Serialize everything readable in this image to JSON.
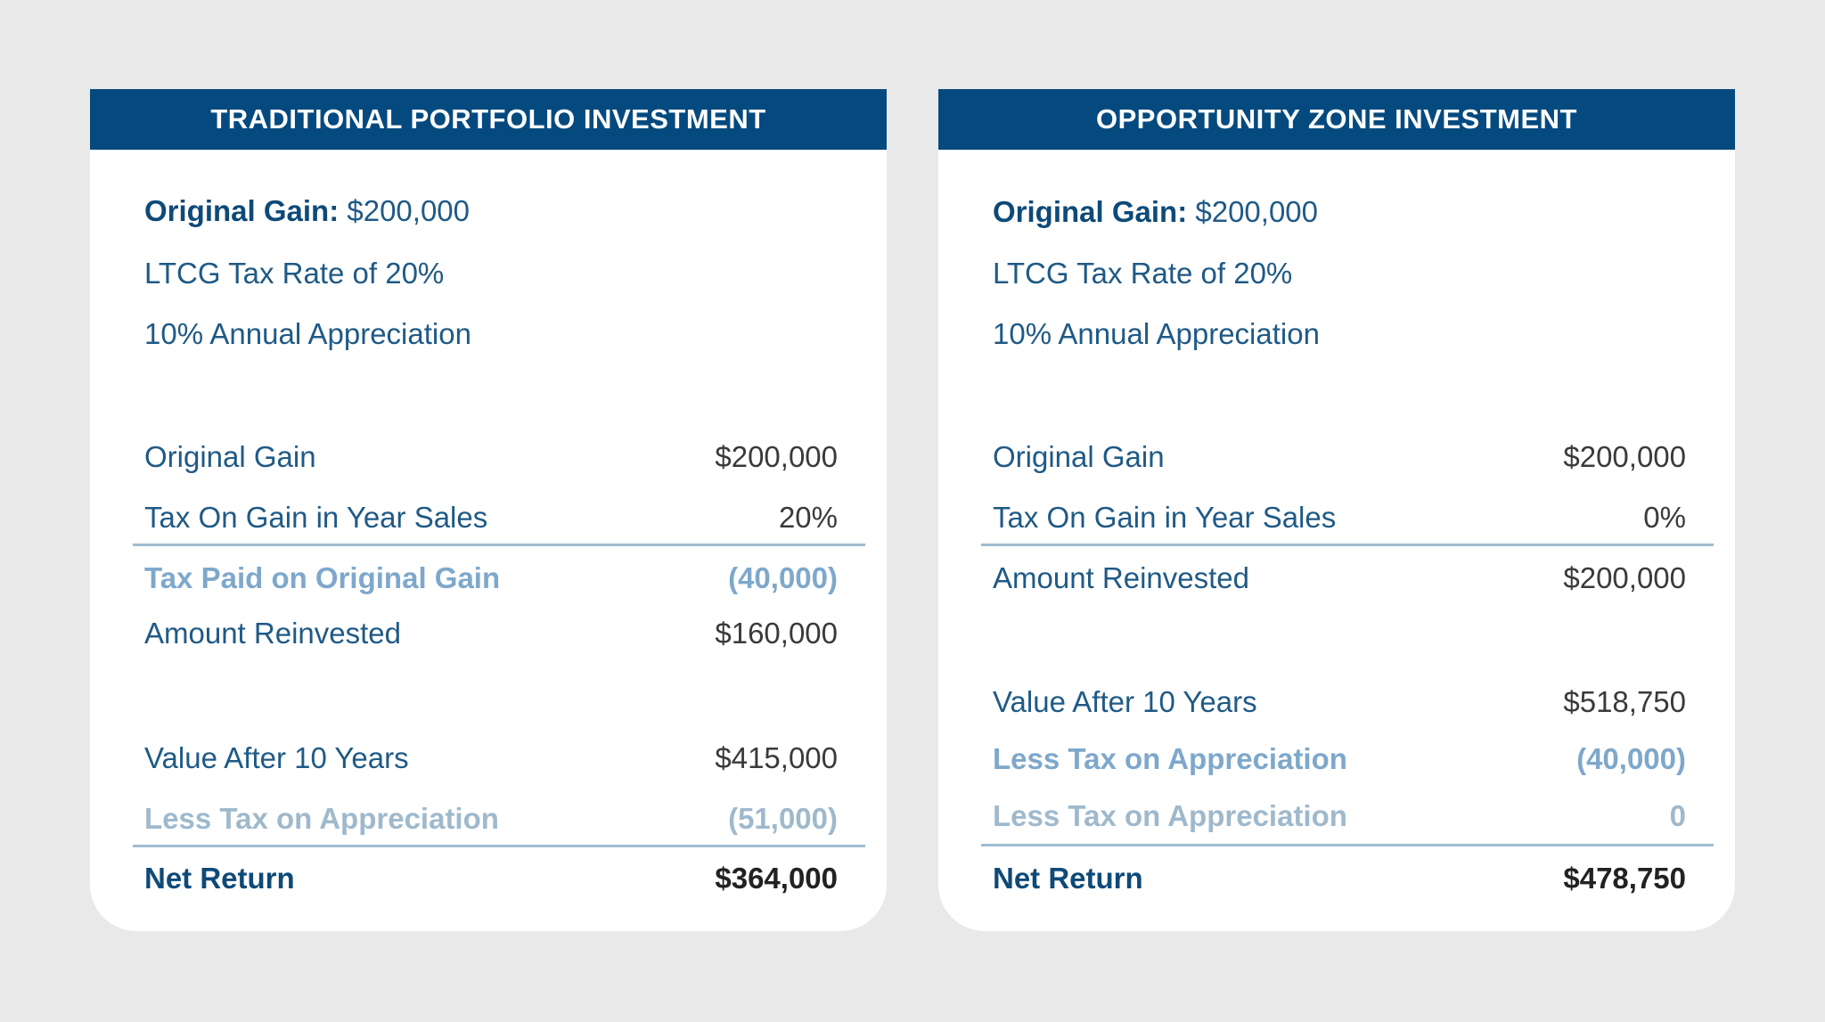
{
  "cards": {
    "traditional": {
      "title": "TRADITIONAL PORTFOLIO INVESTMENT",
      "intro": {
        "original_gain_label": "Original Gain:",
        "original_gain_value": "$200,000",
        "tax_rate": "LTCG Tax Rate of 20%",
        "appreciation": "10% Annual Appreciation"
      },
      "rows": [
        {
          "label": "Original Gain",
          "value": "$200,000"
        },
        {
          "label": "Tax On Gain in Year Sales",
          "value": "20%"
        },
        {
          "label": "Tax Paid on Original Gain",
          "value": "(40,000)"
        },
        {
          "label": "Amount Reinvested",
          "value": "$160,000"
        },
        {
          "label": "Value After 10 Years",
          "value": "$415,000"
        },
        {
          "label": "Less Tax on Appreciation",
          "value": "(51,000)"
        },
        {
          "label": "Net Return",
          "value": "$364,000"
        }
      ]
    },
    "oz": {
      "title": "OPPORTUNITY ZONE INVESTMENT",
      "intro": {
        "original_gain_label": "Original Gain:",
        "original_gain_value": "$200,000",
        "tax_rate": "LTCG Tax Rate of 20%",
        "appreciation": "10% Annual Appreciation"
      },
      "rows": [
        {
          "label": "Original Gain",
          "value": "$200,000"
        },
        {
          "label": "Tax On Gain in Year Sales",
          "value": "0%"
        },
        {
          "label": "Amount Reinvested",
          "value": "$200,000"
        },
        {
          "label": "Value After 10 Years",
          "value": "$518,750"
        },
        {
          "label": "Less Tax on Appreciation",
          "value": "(40,000)"
        },
        {
          "label": "Less Tax on Appreciation",
          "value": "0"
        },
        {
          "label": "Net Return",
          "value": "$478,750"
        }
      ]
    }
  },
  "colors": {
    "header_bg": "#054a7f",
    "label_text": "#1f5a86",
    "muted_blue": "#7ea8cb",
    "muted_gray": "#9fb9cc",
    "page_bg": "#e9e9e9"
  }
}
